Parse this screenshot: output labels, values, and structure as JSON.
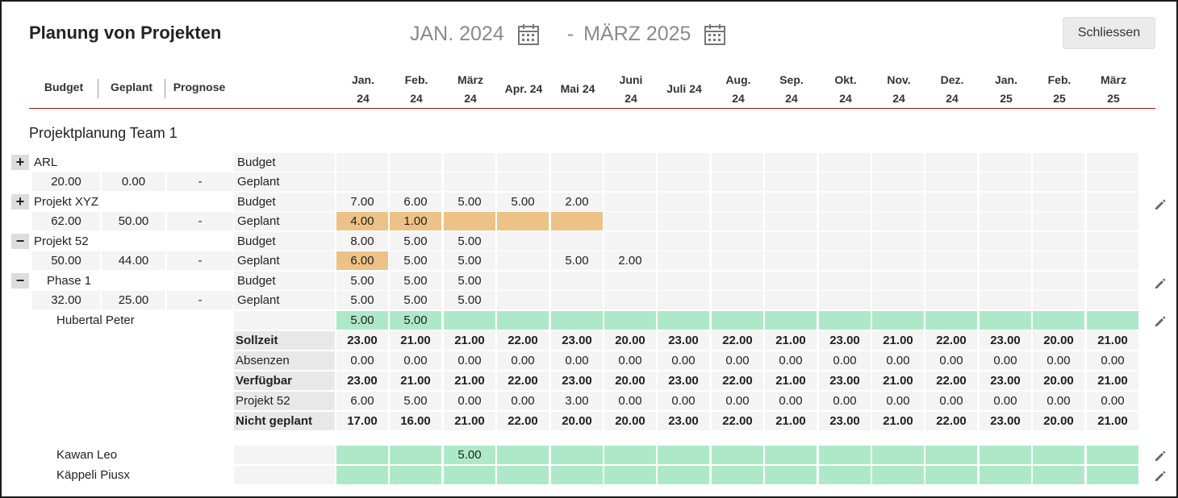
{
  "header": {
    "title": "Planung von Projekten",
    "date_from": "JAN. 2024",
    "date_sep": "-",
    "date_to": "MÄRZ 2025",
    "close_label": "Schliessen",
    "cols": {
      "budget": "Budget",
      "geplant": "Geplant",
      "prognose": "Prognose"
    }
  },
  "months": [
    [
      "Jan.",
      "24"
    ],
    [
      "Feb.",
      "24"
    ],
    [
      "März",
      "24"
    ],
    [
      "Apr. 24",
      ""
    ],
    [
      "Mai 24",
      ""
    ],
    [
      "Juni",
      "24"
    ],
    [
      "Juli 24",
      ""
    ],
    [
      "Aug.",
      "24"
    ],
    [
      "Sep.",
      "24"
    ],
    [
      "Okt.",
      "24"
    ],
    [
      "Nov.",
      "24"
    ],
    [
      "Dez.",
      "24"
    ],
    [
      "Jan.",
      "25"
    ],
    [
      "Feb.",
      "25"
    ],
    [
      "März",
      "25"
    ]
  ],
  "section_title": "Projektplanung Team 1",
  "projects": [
    {
      "toggle": "+",
      "name": "ARL",
      "indent": false,
      "budget": "20.00",
      "geplant": "0.00",
      "prognose": "-",
      "row1_label": "Budget",
      "row2_label": "Geplant",
      "row1": [
        "",
        "",
        "",
        "",
        "",
        "",
        "",
        "",
        "",
        "",
        "",
        "",
        "",
        "",
        ""
      ],
      "row2": [
        "",
        "",
        "",
        "",
        "",
        "",
        "",
        "",
        "",
        "",
        "",
        "",
        "",
        "",
        ""
      ],
      "row2_orange": [],
      "edit": false
    },
    {
      "toggle": "+",
      "name": "Projekt XYZ",
      "indent": false,
      "budget": "62.00",
      "geplant": "50.00",
      "prognose": "-",
      "row1_label": "Budget",
      "row2_label": "Geplant",
      "row1": [
        "7.00",
        "6.00",
        "5.00",
        "5.00",
        "2.00",
        "",
        "",
        "",
        "",
        "",
        "",
        "",
        "",
        "",
        ""
      ],
      "row2": [
        "4.00",
        "1.00",
        "",
        "",
        "",
        "",
        "",
        "",
        "",
        "",
        "",
        "",
        "",
        "",
        ""
      ],
      "row2_orange": [
        0,
        1,
        2,
        3,
        4
      ],
      "edit": true
    },
    {
      "toggle": "−",
      "name": "Projekt 52",
      "indent": false,
      "budget": "50.00",
      "geplant": "44.00",
      "prognose": "-",
      "row1_label": "Budget",
      "row2_label": "Geplant",
      "row1": [
        "8.00",
        "5.00",
        "5.00",
        "",
        "",
        "",
        "",
        "",
        "",
        "",
        "",
        "",
        "",
        "",
        ""
      ],
      "row2": [
        "6.00",
        "5.00",
        "5.00",
        "",
        "5.00",
        "2.00",
        "",
        "",
        "",
        "",
        "",
        "",
        "",
        "",
        ""
      ],
      "row2_orange": [
        0
      ],
      "edit": false
    },
    {
      "toggle": "−",
      "name": "Phase 1",
      "indent": true,
      "budget": "32.00",
      "geplant": "25.00",
      "prognose": "-",
      "row1_label": "Budget",
      "row2_label": "Geplant",
      "row1": [
        "5.00",
        "5.00",
        "5.00",
        "",
        "",
        "",
        "",
        "",
        "",
        "",
        "",
        "",
        "",
        "",
        ""
      ],
      "row2": [
        "5.00",
        "5.00",
        "5.00",
        "",
        "",
        "",
        "",
        "",
        "",
        "",
        "",
        "",
        "",
        "",
        ""
      ],
      "row2_orange": [],
      "edit": true
    }
  ],
  "person1": {
    "name": "Hubertal Peter",
    "green": [
      "5.00",
      "5.00",
      "",
      "",
      "",
      "",
      "",
      "",
      "",
      "",
      "",
      "",
      "",
      "",
      ""
    ],
    "stats": [
      {
        "label": "Sollzeit",
        "bold": true,
        "values": [
          "23.00",
          "21.00",
          "21.00",
          "22.00",
          "23.00",
          "20.00",
          "23.00",
          "22.00",
          "21.00",
          "23.00",
          "21.00",
          "22.00",
          "23.00",
          "20.00",
          "21.00"
        ]
      },
      {
        "label": "Absenzen",
        "bold": false,
        "values": [
          "0.00",
          "0.00",
          "0.00",
          "0.00",
          "0.00",
          "0.00",
          "0.00",
          "0.00",
          "0.00",
          "0.00",
          "0.00",
          "0.00",
          "0.00",
          "0.00",
          "0.00"
        ]
      },
      {
        "label": "Verfügbar",
        "bold": true,
        "values": [
          "23.00",
          "21.00",
          "21.00",
          "22.00",
          "23.00",
          "20.00",
          "23.00",
          "22.00",
          "21.00",
          "23.00",
          "21.00",
          "22.00",
          "23.00",
          "20.00",
          "21.00"
        ]
      },
      {
        "label": "Projekt 52",
        "bold": false,
        "values": [
          "6.00",
          "5.00",
          "0.00",
          "0.00",
          "3.00",
          "0.00",
          "0.00",
          "0.00",
          "0.00",
          "0.00",
          "0.00",
          "0.00",
          "0.00",
          "0.00",
          "0.00"
        ]
      },
      {
        "label": "Nicht geplant",
        "bold": true,
        "values": [
          "17.00",
          "16.00",
          "21.00",
          "22.00",
          "20.00",
          "20.00",
          "23.00",
          "22.00",
          "21.00",
          "23.00",
          "21.00",
          "22.00",
          "23.00",
          "20.00",
          "21.00"
        ]
      }
    ]
  },
  "others": [
    {
      "name": "Kawan Leo",
      "values": [
        "",
        "",
        "5.00",
        "",
        "",
        "",
        "",
        "",
        "",
        "",
        "",
        "",
        "",
        "",
        ""
      ]
    },
    {
      "name": "Käppeli Piusx",
      "values": [
        "",
        "",
        "",
        "",
        "",
        "",
        "",
        "",
        "",
        "",
        "",
        "",
        "",
        "",
        ""
      ]
    }
  ],
  "colors": {
    "orange": "#edc286",
    "green": "#ade9c8",
    "accent_line": "#b01818"
  }
}
